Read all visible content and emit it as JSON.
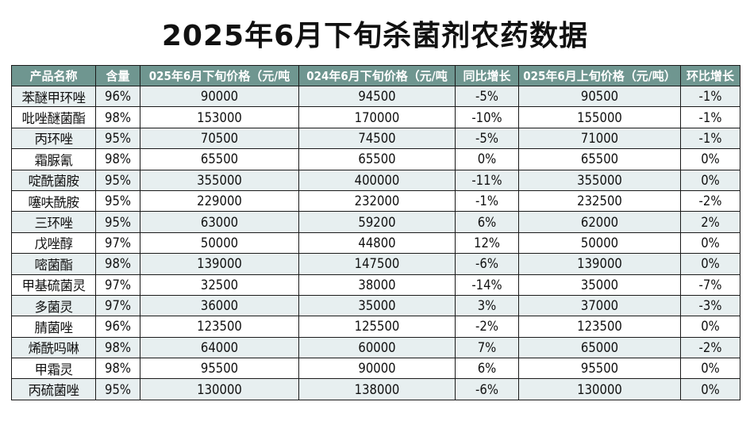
{
  "title": "2025年6月下旬杀菌剂农药数据",
  "colors": {
    "header_bg": "#6f9690",
    "header_text": "#ffffff",
    "row_alt_bg": "#e7eff0",
    "border": "#1a1a1a"
  },
  "table": {
    "headers": [
      "产品名称",
      "含量",
      "025年6月下旬价格（元/吨",
      "024年6月下旬价格（元/吨",
      "同比增长",
      "025年6月上旬价格（元/吨）",
      "环比增长"
    ],
    "rows": [
      [
        "苯醚甲环唑",
        "96%",
        "90000",
        "94500",
        "-5%",
        "90500",
        "-1%"
      ],
      [
        "吡唑醚菌酯",
        "98%",
        "153000",
        "170000",
        "-10%",
        "155000",
        "-1%"
      ],
      [
        "丙环唑",
        "95%",
        "70500",
        "74500",
        "-5%",
        "71000",
        "-1%"
      ],
      [
        "霜脲氰",
        "98%",
        "65500",
        "65500",
        "0%",
        "65500",
        "0%"
      ],
      [
        "啶酰菌胺",
        "95%",
        "355000",
        "400000",
        "-11%",
        "355000",
        "0%"
      ],
      [
        "噻呋酰胺",
        "95%",
        "229000",
        "232000",
        "-1%",
        "232500",
        "-2%"
      ],
      [
        "三环唑",
        "95%",
        "63000",
        "59200",
        "6%",
        "62000",
        "2%"
      ],
      [
        "戊唑醇",
        "97%",
        "50000",
        "44800",
        "12%",
        "50000",
        "0%"
      ],
      [
        "嘧菌酯",
        "98%",
        "139000",
        "147500",
        "-6%",
        "139000",
        "0%"
      ],
      [
        "甲基硫菌灵",
        "97%",
        "32500",
        "38000",
        "-14%",
        "35000",
        "-7%"
      ],
      [
        "多菌灵",
        "97%",
        "36000",
        "35000",
        "3%",
        "37000",
        "-3%"
      ],
      [
        "腈菌唑",
        "96%",
        "123500",
        "125500",
        "-2%",
        "123500",
        "0%"
      ],
      [
        "烯酰吗啉",
        "98%",
        "64000",
        "60000",
        "7%",
        "65000",
        "-2%"
      ],
      [
        "甲霜灵",
        "98%",
        "95500",
        "90000",
        "6%",
        "95500",
        "0%"
      ],
      [
        "丙硫菌唑",
        "95%",
        "130000",
        "138000",
        "-6%",
        "130000",
        "0%"
      ]
    ]
  }
}
